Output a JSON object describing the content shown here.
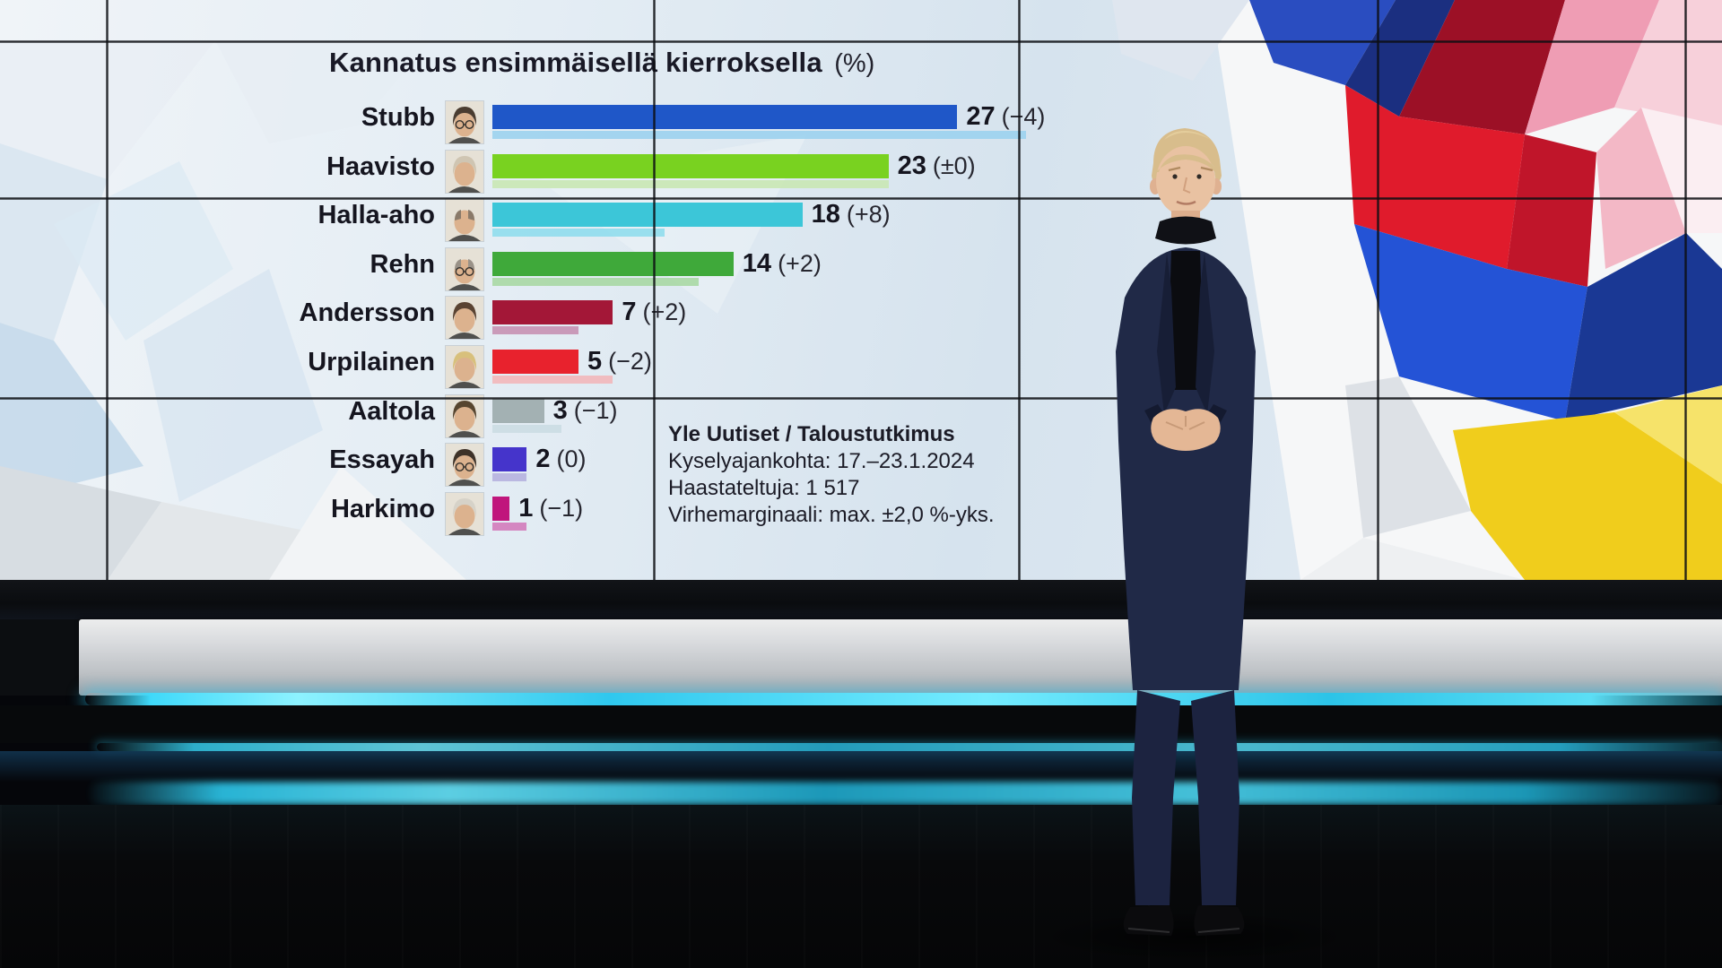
{
  "chart_data": {
    "type": "bar",
    "orientation": "horizontal",
    "title": "Kannatus ensimmäisellä kierroksella",
    "title_unit": "(%)",
    "categories": [
      "Stubb",
      "Haavisto",
      "Halla-aho",
      "Rehn",
      "Andersson",
      "Urpilainen",
      "Aaltola",
      "Essayah",
      "Harkimo"
    ],
    "series": [
      {
        "name": "current-round-support",
        "values": [
          27,
          23,
          18,
          14,
          7,
          5,
          3,
          2,
          1
        ],
        "colors": [
          "#1f57c8",
          "#79d220",
          "#3cc6d8",
          "#3fa93a",
          "#a31737",
          "#e8222d",
          "#a3b1b3",
          "#4534cb",
          "#c0167c"
        ]
      },
      {
        "name": "previous-poll-support",
        "values": [
          31,
          23,
          10,
          12,
          5,
          7,
          4,
          2,
          2
        ],
        "colors": [
          "#9cd2ee",
          "#c9e7b4",
          "#90dded",
          "#a8d8a4",
          "#c791b3",
          "#f2b7ba",
          "#cbdde3",
          "#b6b2df",
          "#d37cbb"
        ]
      }
    ],
    "changes": [
      "(−4)",
      "(±0)",
      "(+8)",
      "(+2)",
      "(+2)",
      "(−2)",
      "(−1)",
      "(0)",
      "(−1)"
    ],
    "xlim": [
      0,
      30
    ],
    "axis": "none",
    "legend": "none",
    "photos": [
      {
        "hair": "#4a3c30",
        "bald": false,
        "glasses": true
      },
      {
        "hair": "#cfc5b2",
        "bald": false,
        "glasses": false
      },
      {
        "hair": "#8a7a6a",
        "bald": true,
        "glasses": false
      },
      {
        "hair": "#9a9288",
        "bald": true,
        "glasses": true
      },
      {
        "hair": "#5a4332",
        "bald": false,
        "glasses": false
      },
      {
        "hair": "#d8c07c",
        "bald": false,
        "glasses": false
      },
      {
        "hair": "#57452f",
        "bald": false,
        "glasses": false
      },
      {
        "hair": "#3e3228",
        "bald": false,
        "glasses": true
      },
      {
        "hair": "#d6d2c8",
        "bald": false,
        "glasses": false
      }
    ]
  },
  "source_note": {
    "line1": "Yle Uutiset / Taloustutkimus",
    "line2": "Kyselyajankohta: 17.–23.1.2024",
    "line3": "Haastateltuja: 1 517",
    "line4": "Virhemarginaali: max. ±2,0 %-yks."
  },
  "palette": {
    "led_cyan": "#3fd9fa",
    "bezel_dark": "#14171c",
    "suit_navy": "#202947",
    "wall_tint": "#dfe9f2"
  }
}
